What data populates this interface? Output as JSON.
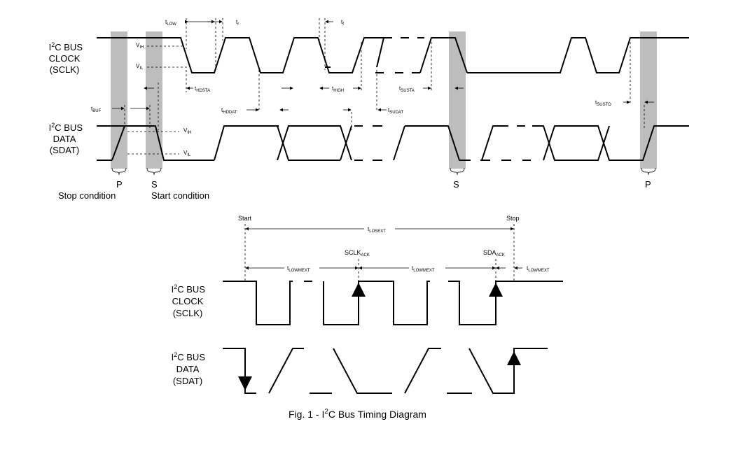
{
  "top": {
    "clock_label": [
      "I2C BUS",
      "CLOCK",
      "(SCLK)"
    ],
    "data_label": [
      "I2C BUS",
      "DATA",
      "(SDAT)"
    ],
    "levels": {
      "vih": "V",
      "vih_sub": "IH",
      "vil": "V",
      "vil_sub": "IL"
    },
    "timing": {
      "t_low": "LOW",
      "t_r": "r",
      "t_f": "f",
      "t_hdsta": "HDSTA",
      "t_high": "HIGH",
      "t_susta": "SUSTA",
      "t_buf": "BUF",
      "t_hddat": "HDDAT",
      "t_sudat": "SUDAT",
      "t_susto": "SUSTO"
    },
    "conditions": {
      "p1": "P",
      "s1": "S",
      "s2": "S",
      "p2": "P"
    },
    "stop_condition": "Stop condition",
    "start_condition": "Start condition"
  },
  "bottom": {
    "start": "Start",
    "stop": "Stop",
    "t_losext": "LOSEXT",
    "t_lowmext": "LOWMEXT",
    "sclk_ack": "SCLK",
    "sda_ack": "SDA",
    "ack_sub": "ACK",
    "clock_label": [
      "I2C BUS",
      "CLOCK",
      "(SCLK)"
    ],
    "data_label": [
      "I2C BUS",
      "DATA",
      "(SDAT)"
    ]
  },
  "caption": {
    "prefix": "Fig. 1 - I",
    "sup": "2",
    "suffix": "C Bus Timing Diagram"
  }
}
